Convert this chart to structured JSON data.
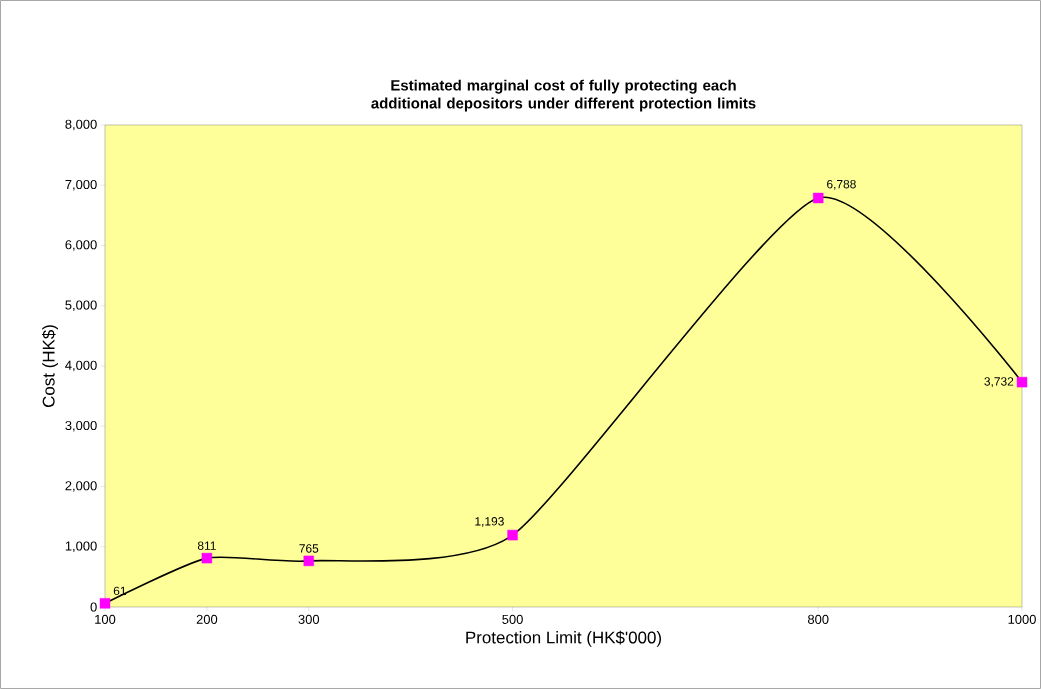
{
  "chart_data": {
    "type": "line",
    "title": "Estimated marginal cost of fully protecting each additional depositors under different protection limits",
    "xlabel": "Protection Limit (HK$'000)",
    "ylabel": "Cost (HK$)",
    "x": [
      100,
      200,
      300,
      500,
      800,
      1000
    ],
    "series": [
      {
        "color": "#000000",
        "values": [
          61,
          811,
          765,
          1193,
          6788,
          3732
        ]
      },
      {
        "type": "scatter",
        "color": "#ff00ff",
        "marker": "square",
        "values": [
          61,
          811,
          765,
          1193,
          6788,
          3732
        ],
        "value_labels": [
          "61",
          "811",
          "765",
          "1,193",
          "6,788",
          "3,732"
        ]
      }
    ],
    "grid": false,
    "xlim": [
      100,
      1000
    ],
    "xticks": [
      100,
      200,
      300,
      500,
      800,
      1000
    ],
    "ylim": [
      0,
      8000
    ],
    "yticks": [
      0,
      {
        "value": 1000,
        "label": "1,000"
      },
      {
        "value": 2000,
        "label": "2,000"
      },
      {
        "value": 3000,
        "label": "3,000"
      },
      {
        "value": 4000,
        "label": "4,000"
      },
      {
        "value": 5000,
        "label": "5,000"
      },
      {
        "value": 6000,
        "label": "6,000"
      },
      {
        "value": 7000,
        "label": "7,000"
      },
      {
        "value": 8000,
        "label": "8,000"
      }
    ]
  }
}
